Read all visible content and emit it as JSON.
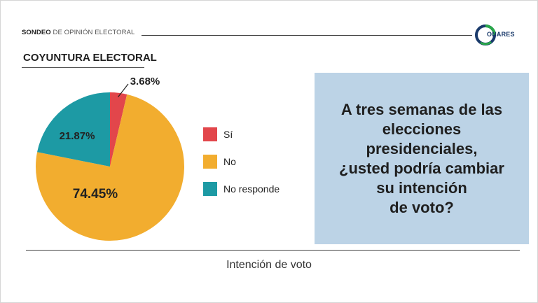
{
  "header": {
    "title_bold": "SONDEO",
    "title_rest": "DE OPINIÓN ELECTORAL",
    "logo_text": "ONARES"
  },
  "section_title": "COYUNTURA ELECTORAL",
  "question": "A tres semanas de las\nelecciones\npresidenciales,\n¿usted podría cambiar\nsu intención\nde voto?",
  "caption": "Intención de voto",
  "colors": {
    "si": "#e2464b",
    "no": "#f2ad2f",
    "no_responde": "#1d9aa4",
    "box": "#bcd3e6",
    "logo_blue": "#1a3a6b",
    "logo_green": "#2aa84a"
  },
  "chart_data": {
    "type": "pie",
    "title": "COYUNTURA ELECTORAL",
    "legend_position": "right",
    "slices": [
      {
        "label": "Sí",
        "value": 3.68,
        "display": "3.68%",
        "color": "#e2464b"
      },
      {
        "label": "No",
        "value": 74.45,
        "display": "74.45%",
        "color": "#f2ad2f"
      },
      {
        "label": "No responde",
        "value": 21.87,
        "display": "21.87%",
        "color": "#1d9aa4"
      }
    ]
  }
}
